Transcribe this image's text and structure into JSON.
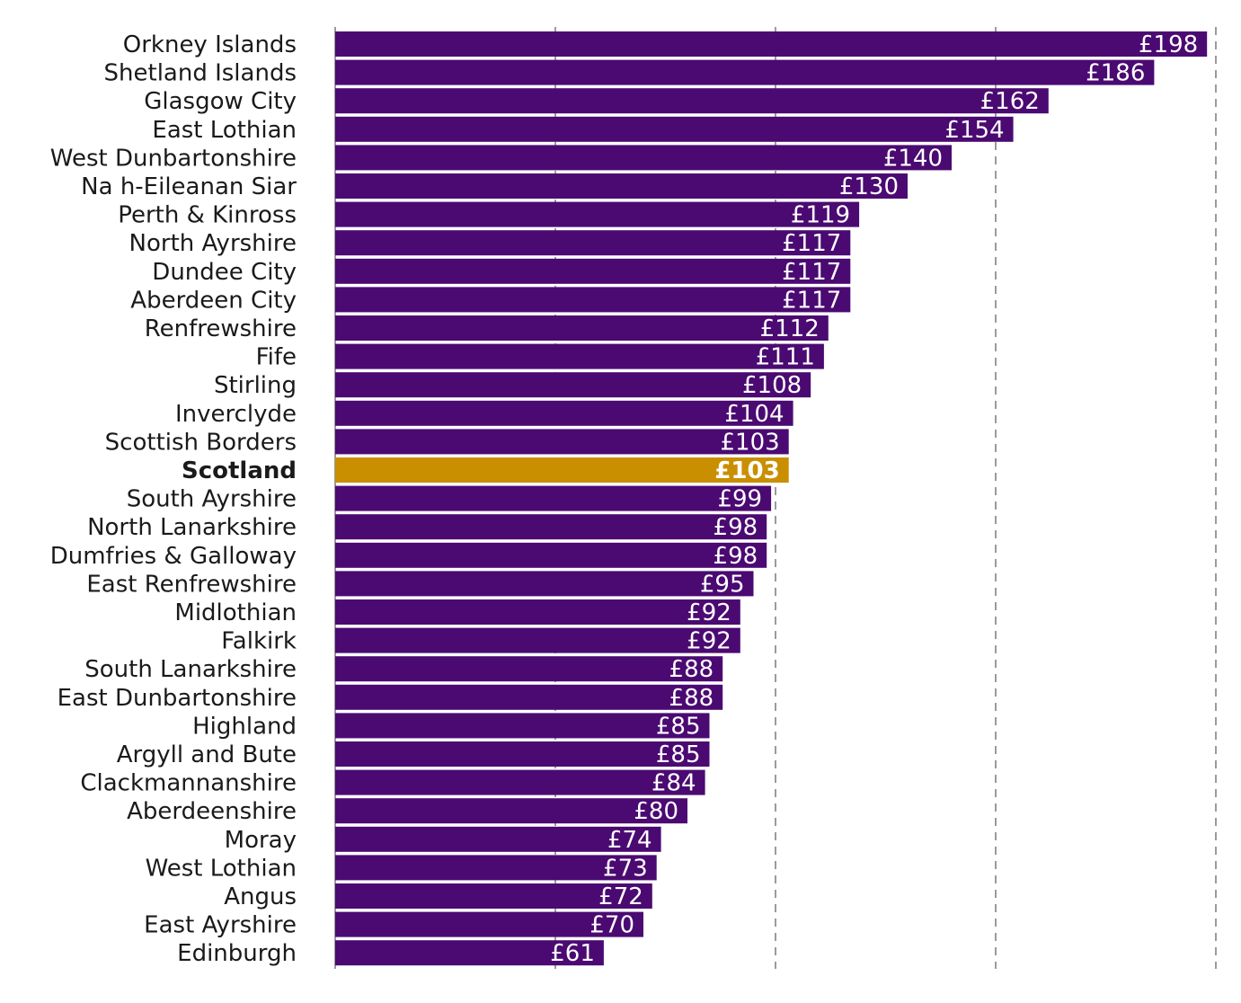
{
  "chart_data": {
    "type": "bar",
    "orientation": "horizontal",
    "title": "",
    "xlabel": "",
    "ylabel": "",
    "xlim": [
      0,
      200
    ],
    "grid": "vertical dashed",
    "value_prefix": "£",
    "bar_color": "#4b0a72",
    "highlight_color": "#c98f00",
    "highlight_category": "Scotland",
    "categories": [
      "Orkney Islands",
      "Shetland Islands",
      "Glasgow City",
      "East Lothian",
      "West Dunbartonshire",
      "Na h-Eileanan Siar",
      "Perth & Kinross",
      "North Ayrshire",
      "Dundee City",
      "Aberdeen City",
      "Renfrewshire",
      "Fife",
      "Stirling",
      "Inverclyde",
      "Scottish Borders",
      "Scotland",
      "South Ayrshire",
      "North Lanarkshire",
      "Dumfries & Galloway",
      "East Renfrewshire",
      "Midlothian",
      "Falkirk",
      "South Lanarkshire",
      "East Dunbartonshire",
      "Highland",
      "Argyll and Bute",
      "Clackmannanshire",
      "Aberdeenshire",
      "Moray",
      "West Lothian",
      "Angus",
      "East Ayrshire",
      "Edinburgh"
    ],
    "values": [
      198,
      186,
      162,
      154,
      140,
      130,
      119,
      117,
      117,
      117,
      112,
      111,
      108,
      104,
      103,
      103,
      99,
      98,
      98,
      95,
      92,
      92,
      88,
      88,
      85,
      85,
      84,
      80,
      74,
      73,
      72,
      70,
      61
    ],
    "value_labels": [
      "£198",
      "£186",
      "£162",
      "£154",
      "£140",
      "£130",
      "£119",
      "£117",
      "£117",
      "£117",
      "£112",
      "£111",
      "£108",
      "£104",
      "£103",
      "£103",
      "£99",
      "£98",
      "£98",
      "£95",
      "£92",
      "£92",
      "£88",
      "£88",
      "£85",
      "£85",
      "£84",
      "£80",
      "£74",
      "£73",
      "£72",
      "£70",
      "£61"
    ]
  }
}
